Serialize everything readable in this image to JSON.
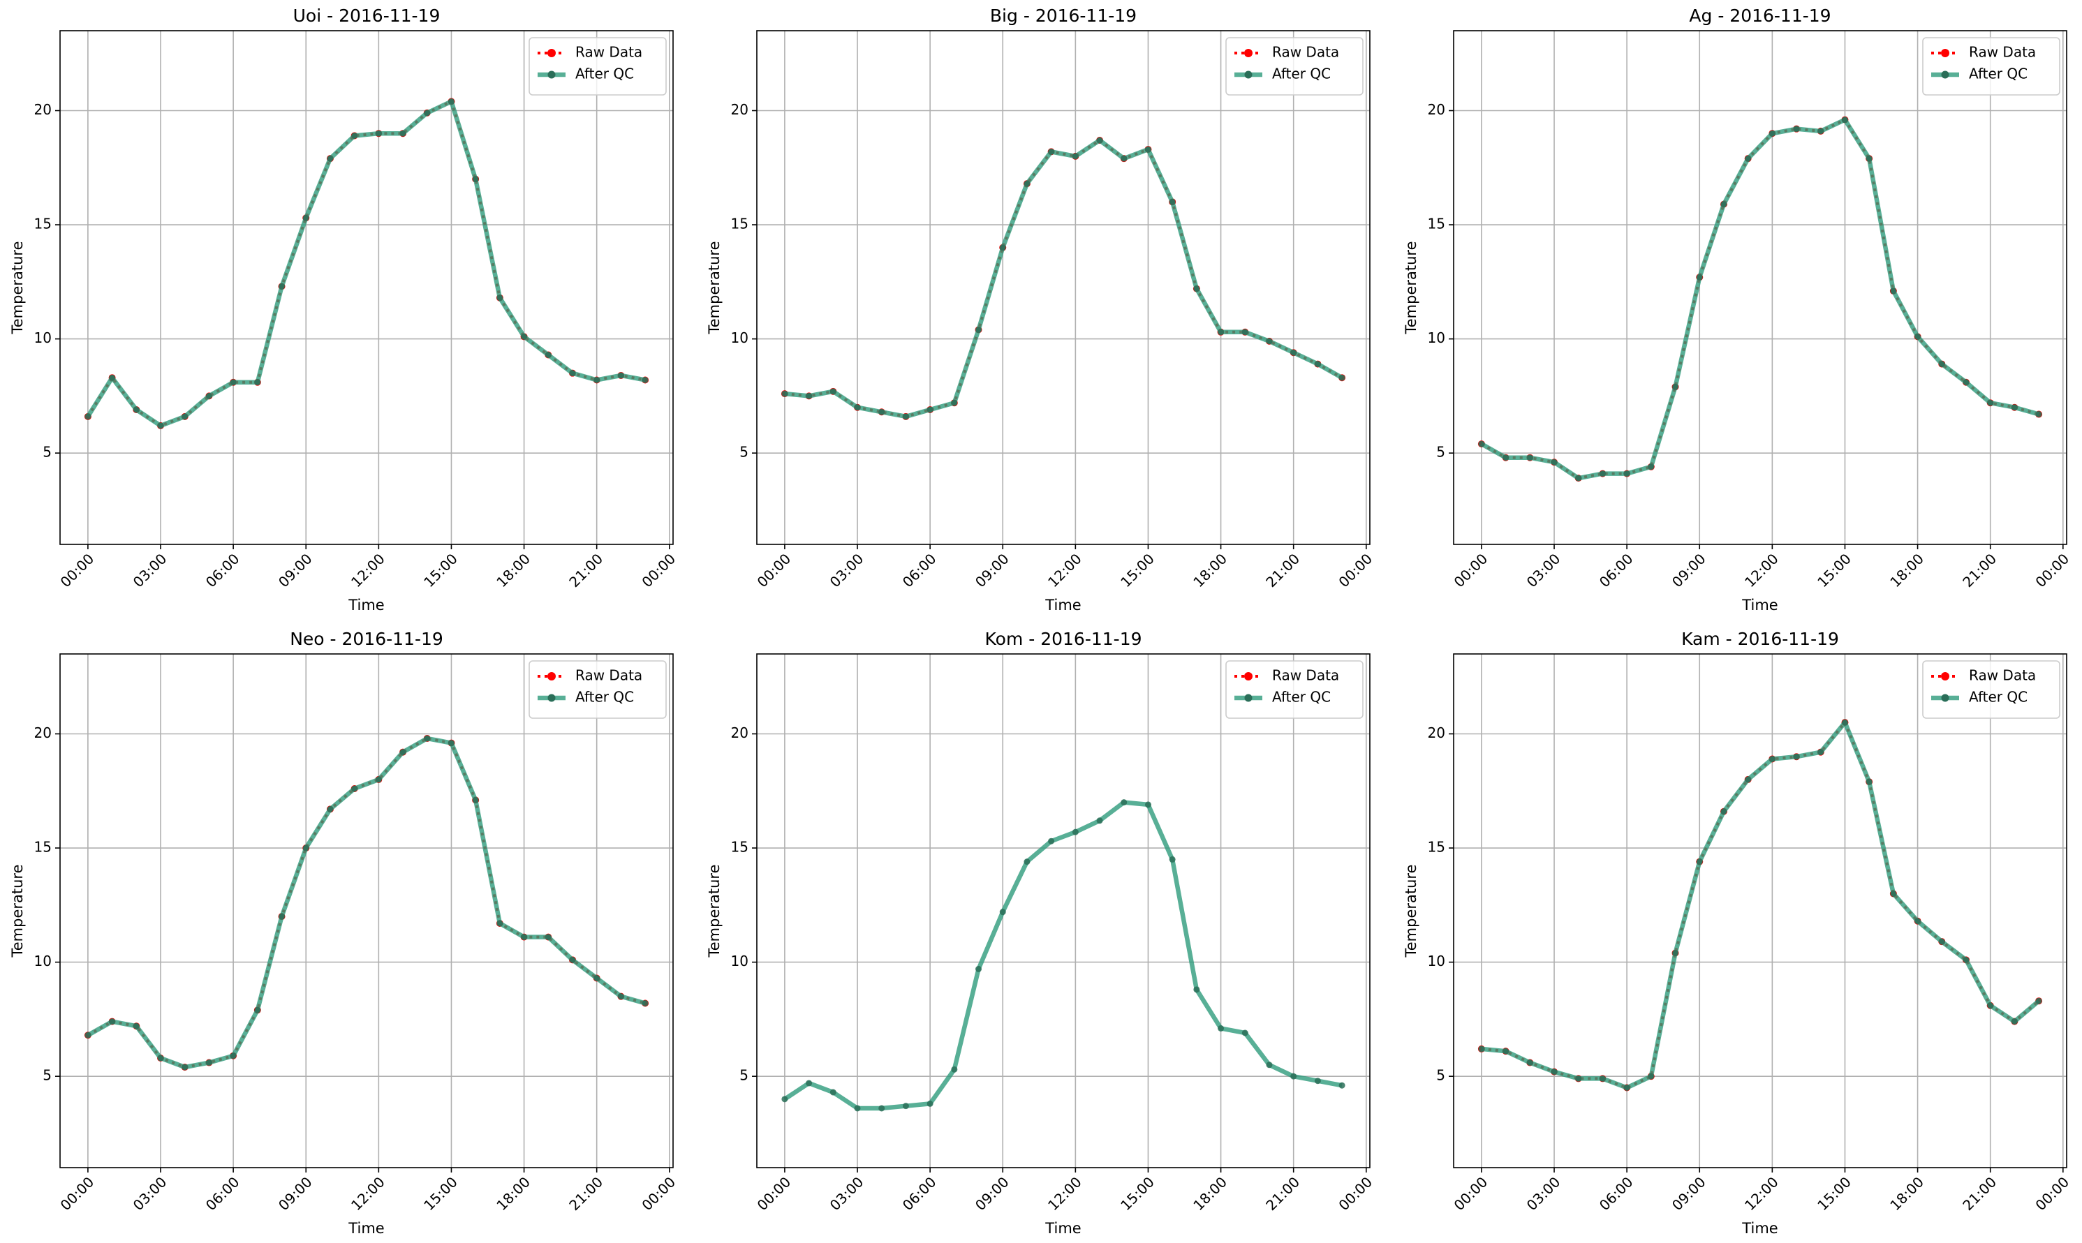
{
  "chart_data": [
    {
      "type": "line",
      "title": "Uoi - 2016-11-19",
      "xlabel": "Time",
      "ylabel": "Temperature",
      "grid": true,
      "legend": "upper right",
      "x": [
        0,
        1,
        2,
        3,
        4,
        5,
        6,
        7,
        8,
        9,
        10,
        11,
        12,
        13,
        14,
        15,
        16,
        17,
        18,
        19,
        20,
        21,
        22,
        23
      ],
      "xlim": [
        -1.15,
        24.15
      ],
      "xticks": [
        {
          "value": 0,
          "label": "00:00"
        },
        {
          "value": 3,
          "label": "03:00"
        },
        {
          "value": 6,
          "label": "06:00"
        },
        {
          "value": 9,
          "label": "09:00"
        },
        {
          "value": 12,
          "label": "12:00"
        },
        {
          "value": 15,
          "label": "15:00"
        },
        {
          "value": 18,
          "label": "18:00"
        },
        {
          "value": 21,
          "label": "21:00"
        },
        {
          "value": 24,
          "label": "00:00"
        }
      ],
      "ylim": [
        1,
        23.5
      ],
      "yticks": [
        5,
        10,
        15,
        20
      ],
      "series": [
        {
          "name": "Raw Data",
          "color": "#ff0000",
          "values": [
            6.6,
            8.3,
            6.9,
            6.2,
            6.6,
            7.5,
            8.1,
            8.1,
            12.3,
            15.3,
            17.9,
            18.9,
            19.0,
            19.0,
            19.9,
            20.4,
            17.0,
            11.8,
            10.1,
            9.3,
            8.5,
            8.2,
            8.4,
            8.2
          ]
        },
        {
          "name": "After QC",
          "color": "#2e9b7c",
          "values": [
            6.6,
            8.3,
            6.9,
            6.2,
            6.6,
            7.5,
            8.1,
            8.1,
            12.3,
            15.3,
            17.9,
            18.9,
            19.0,
            19.0,
            19.9,
            20.4,
            17.0,
            11.8,
            10.1,
            9.3,
            8.5,
            8.2,
            8.4,
            8.2
          ]
        }
      ]
    },
    {
      "type": "line",
      "title": "Big - 2016-11-19",
      "xlabel": "Time",
      "ylabel": "Temperature",
      "grid": true,
      "legend": "upper right",
      "x": [
        0,
        1,
        2,
        3,
        4,
        5,
        6,
        7,
        8,
        9,
        10,
        11,
        12,
        13,
        14,
        15,
        16,
        17,
        18,
        19,
        20,
        21,
        22,
        23
      ],
      "xlim": [
        -1.15,
        24.15
      ],
      "xticks": [
        {
          "value": 0,
          "label": "00:00"
        },
        {
          "value": 3,
          "label": "03:00"
        },
        {
          "value": 6,
          "label": "06:00"
        },
        {
          "value": 9,
          "label": "09:00"
        },
        {
          "value": 12,
          "label": "12:00"
        },
        {
          "value": 15,
          "label": "15:00"
        },
        {
          "value": 18,
          "label": "18:00"
        },
        {
          "value": 21,
          "label": "21:00"
        },
        {
          "value": 24,
          "label": "00:00"
        }
      ],
      "ylim": [
        1,
        23.5
      ],
      "yticks": [
        5,
        10,
        15,
        20
      ],
      "series": [
        {
          "name": "Raw Data",
          "color": "#ff0000",
          "values": [
            7.6,
            7.5,
            7.7,
            7.0,
            6.8,
            6.6,
            6.9,
            7.2,
            10.4,
            14.0,
            16.8,
            18.2,
            18.0,
            18.7,
            17.9,
            18.3,
            16.0,
            12.2,
            10.3,
            10.3,
            9.9,
            9.4,
            8.9,
            8.3
          ]
        },
        {
          "name": "After QC",
          "color": "#2e9b7c",
          "values": [
            7.6,
            7.5,
            7.7,
            7.0,
            6.8,
            6.6,
            6.9,
            7.2,
            10.4,
            14.0,
            16.8,
            18.2,
            18.0,
            18.7,
            17.9,
            18.3,
            16.0,
            12.2,
            10.3,
            10.3,
            9.9,
            9.4,
            8.9,
            8.3
          ]
        }
      ]
    },
    {
      "type": "line",
      "title": "Ag - 2016-11-19",
      "xlabel": "Time",
      "ylabel": "Temperature",
      "grid": true,
      "legend": "upper right",
      "x": [
        0,
        1,
        2,
        3,
        4,
        5,
        6,
        7,
        8,
        9,
        10,
        11,
        12,
        13,
        14,
        15,
        16,
        17,
        18,
        19,
        20,
        21,
        22,
        23
      ],
      "xlim": [
        -1.15,
        24.15
      ],
      "xticks": [
        {
          "value": 0,
          "label": "00:00"
        },
        {
          "value": 3,
          "label": "03:00"
        },
        {
          "value": 6,
          "label": "06:00"
        },
        {
          "value": 9,
          "label": "09:00"
        },
        {
          "value": 12,
          "label": "12:00"
        },
        {
          "value": 15,
          "label": "15:00"
        },
        {
          "value": 18,
          "label": "18:00"
        },
        {
          "value": 21,
          "label": "21:00"
        },
        {
          "value": 24,
          "label": "00:00"
        }
      ],
      "ylim": [
        1,
        23.5
      ],
      "yticks": [
        5,
        10,
        15,
        20
      ],
      "series": [
        {
          "name": "Raw Data",
          "color": "#ff0000",
          "values": [
            5.4,
            4.8,
            4.8,
            4.6,
            3.9,
            4.1,
            4.1,
            4.4,
            7.9,
            12.7,
            15.9,
            17.9,
            19.0,
            19.2,
            19.1,
            19.6,
            17.9,
            12.1,
            10.1,
            8.9,
            8.1,
            7.2,
            7.0,
            6.7
          ]
        },
        {
          "name": "After QC",
          "color": "#2e9b7c",
          "values": [
            5.4,
            4.8,
            4.8,
            4.6,
            3.9,
            4.1,
            4.1,
            4.4,
            7.9,
            12.7,
            15.9,
            17.9,
            19.0,
            19.2,
            19.1,
            19.6,
            17.9,
            12.1,
            10.1,
            8.9,
            8.1,
            7.2,
            7.0,
            6.7
          ]
        }
      ]
    },
    {
      "type": "line",
      "title": "Neo - 2016-11-19",
      "xlabel": "Time",
      "ylabel": "Temperature",
      "grid": true,
      "legend": "upper right",
      "x": [
        0,
        1,
        2,
        3,
        4,
        5,
        6,
        7,
        8,
        9,
        10,
        11,
        12,
        13,
        14,
        15,
        16,
        17,
        18,
        19,
        20,
        21,
        22,
        23
      ],
      "xlim": [
        -1.15,
        24.15
      ],
      "xticks": [
        {
          "value": 0,
          "label": "00:00"
        },
        {
          "value": 3,
          "label": "03:00"
        },
        {
          "value": 6,
          "label": "06:00"
        },
        {
          "value": 9,
          "label": "09:00"
        },
        {
          "value": 12,
          "label": "12:00"
        },
        {
          "value": 15,
          "label": "15:00"
        },
        {
          "value": 18,
          "label": "18:00"
        },
        {
          "value": 21,
          "label": "21:00"
        },
        {
          "value": 24,
          "label": "00:00"
        }
      ],
      "ylim": [
        1,
        23.5
      ],
      "yticks": [
        5,
        10,
        15,
        20
      ],
      "series": [
        {
          "name": "Raw Data",
          "color": "#ff0000",
          "values": [
            6.8,
            7.4,
            7.2,
            5.8,
            5.4,
            5.6,
            5.9,
            7.9,
            12.0,
            15.0,
            16.7,
            17.6,
            18.0,
            19.2,
            19.8,
            19.6,
            17.1,
            11.7,
            11.1,
            11.1,
            10.1,
            9.3,
            8.5,
            8.2
          ]
        },
        {
          "name": "After QC",
          "color": "#2e9b7c",
          "values": [
            6.8,
            7.4,
            7.2,
            5.8,
            5.4,
            5.6,
            5.9,
            7.9,
            12.0,
            15.0,
            16.7,
            17.6,
            18.0,
            19.2,
            19.8,
            19.6,
            17.1,
            11.7,
            11.1,
            11.1,
            10.1,
            9.3,
            8.5,
            8.2
          ]
        }
      ]
    },
    {
      "type": "line",
      "title": "Kom - 2016-11-19",
      "xlabel": "Time",
      "ylabel": "Temperature",
      "grid": true,
      "legend": "upper right",
      "x": [
        0,
        1,
        2,
        3,
        4,
        5,
        6,
        7,
        8,
        9,
        10,
        11,
        12,
        13,
        14,
        15,
        16,
        17,
        18,
        19,
        20,
        21,
        22,
        23
      ],
      "xlim": [
        -1.15,
        24.15
      ],
      "xticks": [
        {
          "value": 0,
          "label": "00:00"
        },
        {
          "value": 3,
          "label": "03:00"
        },
        {
          "value": 6,
          "label": "06:00"
        },
        {
          "value": 9,
          "label": "09:00"
        },
        {
          "value": 12,
          "label": "12:00"
        },
        {
          "value": 15,
          "label": "15:00"
        },
        {
          "value": 18,
          "label": "18:00"
        },
        {
          "value": 21,
          "label": "21:00"
        },
        {
          "value": 24,
          "label": "00:00"
        }
      ],
      "ylim": [
        1,
        23.5
      ],
      "yticks": [
        5,
        10,
        15,
        20
      ],
      "series": [
        {
          "name": "Raw Data",
          "color": "#ff0000",
          "values": [
            null,
            null,
            null,
            null,
            null,
            null,
            null,
            null,
            null,
            null,
            null,
            null,
            null,
            null,
            null,
            null,
            null,
            null,
            null,
            null,
            null,
            null,
            null,
            null
          ]
        },
        {
          "name": "After QC",
          "color": "#2e9b7c",
          "values": [
            4.0,
            4.7,
            4.3,
            3.6,
            3.6,
            3.7,
            3.8,
            5.3,
            9.7,
            12.2,
            14.4,
            15.3,
            15.7,
            16.2,
            17.0,
            16.9,
            14.5,
            8.8,
            7.1,
            6.9,
            5.5,
            5.0,
            4.8,
            4.6
          ]
        }
      ]
    },
    {
      "type": "line",
      "title": "Kam - 2016-11-19",
      "xlabel": "Time",
      "ylabel": "Temperature",
      "grid": true,
      "legend": "upper right",
      "x": [
        0,
        1,
        2,
        3,
        4,
        5,
        6,
        7,
        8,
        9,
        10,
        11,
        12,
        13,
        14,
        15,
        16,
        17,
        18,
        19,
        20,
        21,
        22,
        23
      ],
      "xlim": [
        -1.15,
        24.15
      ],
      "xticks": [
        {
          "value": 0,
          "label": "00:00"
        },
        {
          "value": 3,
          "label": "03:00"
        },
        {
          "value": 6,
          "label": "06:00"
        },
        {
          "value": 9,
          "label": "09:00"
        },
        {
          "value": 12,
          "label": "12:00"
        },
        {
          "value": 15,
          "label": "15:00"
        },
        {
          "value": 18,
          "label": "18:00"
        },
        {
          "value": 21,
          "label": "21:00"
        },
        {
          "value": 24,
          "label": "00:00"
        }
      ],
      "ylim": [
        1,
        23.5
      ],
      "yticks": [
        5,
        10,
        15,
        20
      ],
      "series": [
        {
          "name": "Raw Data",
          "color": "#ff0000",
          "values": [
            6.2,
            6.1,
            5.6,
            5.2,
            4.9,
            4.9,
            4.5,
            5.0,
            10.4,
            14.4,
            16.6,
            18.0,
            18.9,
            19.0,
            19.2,
            20.5,
            17.9,
            13.0,
            11.8,
            10.9,
            10.1,
            8.1,
            7.4,
            8.3
          ]
        },
        {
          "name": "After QC",
          "color": "#2e9b7c",
          "values": [
            6.2,
            6.1,
            5.6,
            5.2,
            4.9,
            4.9,
            4.5,
            5.0,
            10.4,
            14.4,
            16.6,
            18.0,
            18.9,
            19.0,
            19.2,
            20.5,
            17.9,
            13.0,
            11.8,
            10.9,
            10.1,
            8.1,
            7.4,
            8.3
          ]
        }
      ]
    }
  ]
}
